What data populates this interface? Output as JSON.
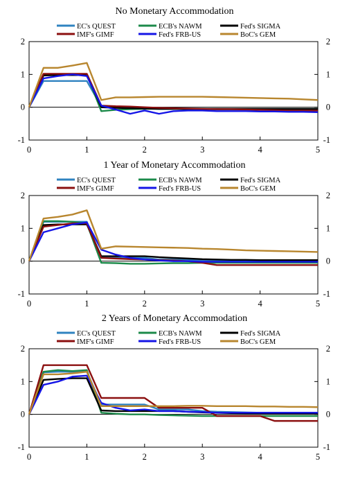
{
  "legend": [
    {
      "name": "EC's QUEST",
      "color": "#2f83c0"
    },
    {
      "name": "ECB's NAWM",
      "color": "#1c8a4a"
    },
    {
      "name": "Fed's SIGMA",
      "color": "#000000"
    },
    {
      "name": "IMF's GIMF",
      "color": "#8b0f0f"
    },
    {
      "name": "Fed's FRB-US",
      "color": "#1414e6"
    },
    {
      "name": "BoC's GEM",
      "color": "#b8862e"
    }
  ],
  "chart_data": [
    {
      "type": "line",
      "title": "No Monetary Accommodation",
      "xlim": [
        0,
        5
      ],
      "ylim": [
        -1,
        2
      ],
      "xticks": [
        0,
        1,
        2,
        3,
        4,
        5
      ],
      "yticks": [
        -1,
        0,
        1,
        2
      ],
      "x": [
        0,
        0.25,
        0.5,
        0.75,
        1,
        1.25,
        1.5,
        1.75,
        2,
        2.25,
        2.5,
        2.75,
        3,
        3.25,
        3.5,
        3.75,
        4,
        4.25,
        4.5,
        4.75,
        5
      ],
      "series": [
        {
          "name": "EC's QUEST",
          "values": [
            0,
            0.8,
            0.8,
            0.8,
            0.8,
            0.02,
            0,
            -0.02,
            -0.03,
            -0.05,
            -0.05,
            -0.06,
            -0.06,
            -0.07,
            -0.07,
            -0.07,
            -0.08,
            -0.08,
            -0.08,
            -0.08,
            -0.08
          ]
        },
        {
          "name": "ECB's NAWM",
          "values": [
            0,
            1.0,
            1.0,
            1.0,
            1.0,
            -0.12,
            -0.08,
            -0.06,
            -0.05,
            -0.05,
            -0.05,
            -0.05,
            -0.05,
            -0.05,
            -0.05,
            -0.05,
            -0.05,
            -0.05,
            -0.05,
            -0.05,
            -0.05
          ]
        },
        {
          "name": "Fed's SIGMA",
          "values": [
            0,
            0.97,
            0.98,
            0.98,
            0.98,
            0,
            -0.02,
            -0.03,
            -0.04,
            -0.05,
            -0.05,
            -0.05,
            -0.05,
            -0.05,
            -0.05,
            -0.05,
            -0.05,
            -0.05,
            -0.05,
            -0.05,
            -0.05
          ]
        },
        {
          "name": "IMF's GIMF",
          "values": [
            0,
            1.02,
            1.02,
            1.02,
            1.02,
            0.05,
            0.03,
            0.02,
            0,
            -0.02,
            -0.03,
            -0.04,
            -0.05,
            -0.06,
            -0.06,
            -0.07,
            -0.08,
            -0.09,
            -0.1,
            -0.1,
            -0.1
          ]
        },
        {
          "name": "Fed's FRB-US",
          "values": [
            0,
            0.88,
            0.95,
            1.0,
            0.95,
            0.05,
            -0.07,
            -0.2,
            -0.1,
            -0.2,
            -0.12,
            -0.1,
            -0.1,
            -0.12,
            -0.12,
            -0.12,
            -0.13,
            -0.13,
            -0.14,
            -0.14,
            -0.15
          ]
        },
        {
          "name": "BoC's GEM",
          "values": [
            0,
            1.2,
            1.2,
            1.27,
            1.35,
            0.22,
            0.3,
            0.3,
            0.31,
            0.32,
            0.32,
            0.32,
            0.32,
            0.31,
            0.3,
            0.29,
            0.28,
            0.27,
            0.26,
            0.24,
            0.22
          ]
        }
      ]
    },
    {
      "type": "line",
      "title": "1 Year of Monetary Accommodation",
      "xlim": [
        0,
        5
      ],
      "ylim": [
        -1,
        2
      ],
      "xticks": [
        0,
        1,
        2,
        3,
        4,
        5
      ],
      "yticks": [
        -1,
        0,
        1,
        2
      ],
      "x": [
        0,
        0.25,
        0.5,
        0.75,
        1,
        1.25,
        1.5,
        1.75,
        2,
        2.25,
        2.5,
        2.75,
        3,
        3.25,
        3.5,
        3.75,
        4,
        4.25,
        4.5,
        4.75,
        5
      ],
      "series": [
        {
          "name": "EC's QUEST",
          "values": [
            0,
            1.2,
            1.2,
            1.2,
            1.2,
            0.1,
            0.1,
            0.1,
            0.1,
            0.05,
            0.05,
            0.04,
            0.03,
            0.02,
            0.02,
            0.02,
            0.02,
            0.02,
            0.02,
            0.02,
            0.02
          ]
        },
        {
          "name": "ECB's NAWM",
          "values": [
            0,
            1.22,
            1.22,
            1.2,
            1.15,
            -0.05,
            -0.06,
            -0.08,
            -0.08,
            -0.07,
            -0.06,
            -0.06,
            -0.05,
            -0.05,
            -0.05,
            -0.05,
            -0.05,
            -0.05,
            -0.05,
            -0.05,
            -0.05
          ]
        },
        {
          "name": "Fed's SIGMA",
          "values": [
            0,
            1.1,
            1.12,
            1.12,
            1.12,
            0.15,
            0.15,
            0.15,
            0.15,
            0.12,
            0.1,
            0.08,
            0.06,
            0.05,
            0.04,
            0.04,
            0.03,
            0.03,
            0.03,
            0.03,
            0.03
          ]
        },
        {
          "name": "IMF's GIMF",
          "values": [
            0,
            1.05,
            1.1,
            1.15,
            1.15,
            0.1,
            0.08,
            0.06,
            0.05,
            0.03,
            0.02,
            0.0,
            -0.05,
            -0.12,
            -0.12,
            -0.12,
            -0.12,
            -0.12,
            -0.12,
            -0.12,
            -0.12
          ]
        },
        {
          "name": "Fed's FRB-US",
          "values": [
            0,
            0.88,
            1.0,
            1.12,
            1.18,
            0.35,
            0.2,
            0.1,
            0.05,
            0.02,
            0.0,
            0.0,
            -0.02,
            -0.02,
            -0.02,
            -0.02,
            -0.02,
            -0.02,
            -0.02,
            -0.02,
            -0.02
          ]
        },
        {
          "name": "BoC's GEM",
          "values": [
            0,
            1.3,
            1.35,
            1.42,
            1.55,
            0.38,
            0.45,
            0.44,
            0.43,
            0.42,
            0.41,
            0.4,
            0.38,
            0.37,
            0.35,
            0.33,
            0.32,
            0.31,
            0.3,
            0.29,
            0.28
          ]
        }
      ]
    },
    {
      "type": "line",
      "title": "2 Years of Monetary Accommodation",
      "xlim": [
        0,
        5
      ],
      "ylim": [
        -1,
        2
      ],
      "xticks": [
        0,
        1,
        2,
        3,
        4,
        5
      ],
      "yticks": [
        -1,
        0,
        1,
        2
      ],
      "x": [
        0,
        0.25,
        0.5,
        0.75,
        1,
        1.25,
        1.5,
        1.75,
        2,
        2.25,
        2.5,
        2.75,
        3,
        3.25,
        3.5,
        3.75,
        4,
        4.25,
        4.5,
        4.75,
        5
      ],
      "series": [
        {
          "name": "EC's QUEST",
          "values": [
            0,
            1.28,
            1.3,
            1.3,
            1.3,
            0.3,
            0.3,
            0.3,
            0.3,
            0.15,
            0.15,
            0.15,
            0.1,
            0.08,
            0.07,
            0.06,
            0.05,
            0.05,
            0.05,
            0.05,
            0.05
          ]
        },
        {
          "name": "ECB's NAWM",
          "values": [
            0,
            1.3,
            1.35,
            1.32,
            1.35,
            0.05,
            0.02,
            0.0,
            0.0,
            -0.02,
            -0.03,
            -0.04,
            -0.05,
            -0.05,
            -0.05,
            -0.05,
            -0.05,
            -0.05,
            -0.05,
            -0.05,
            -0.05
          ]
        },
        {
          "name": "Fed's SIGMA",
          "values": [
            0,
            1.05,
            1.08,
            1.1,
            1.1,
            0.12,
            0.1,
            0.1,
            0.1,
            0.1,
            0.1,
            0.08,
            0.06,
            0.05,
            0.04,
            0.03,
            0.02,
            0.02,
            0.02,
            0.02,
            0.02
          ]
        },
        {
          "name": "IMF's GIMF",
          "values": [
            0,
            1.5,
            1.5,
            1.5,
            1.5,
            0.5,
            0.5,
            0.5,
            0.5,
            0.2,
            0.2,
            0.2,
            0.2,
            -0.05,
            -0.05,
            -0.05,
            -0.05,
            -0.2,
            -0.2,
            -0.2,
            -0.2
          ]
        },
        {
          "name": "Fed's FRB-US",
          "values": [
            0,
            0.9,
            1.0,
            1.15,
            1.18,
            0.35,
            0.2,
            0.12,
            0.15,
            0.1,
            0.1,
            0.08,
            0.07,
            0.05,
            0.05,
            0.05,
            0.05,
            0.05,
            0.05,
            0.05,
            0.05
          ]
        },
        {
          "name": "BoC's GEM",
          "values": [
            0,
            1.22,
            1.22,
            1.25,
            1.3,
            0.25,
            0.25,
            0.25,
            0.25,
            0.25,
            0.25,
            0.26,
            0.26,
            0.25,
            0.25,
            0.25,
            0.24,
            0.24,
            0.23,
            0.23,
            0.22
          ]
        }
      ]
    }
  ]
}
